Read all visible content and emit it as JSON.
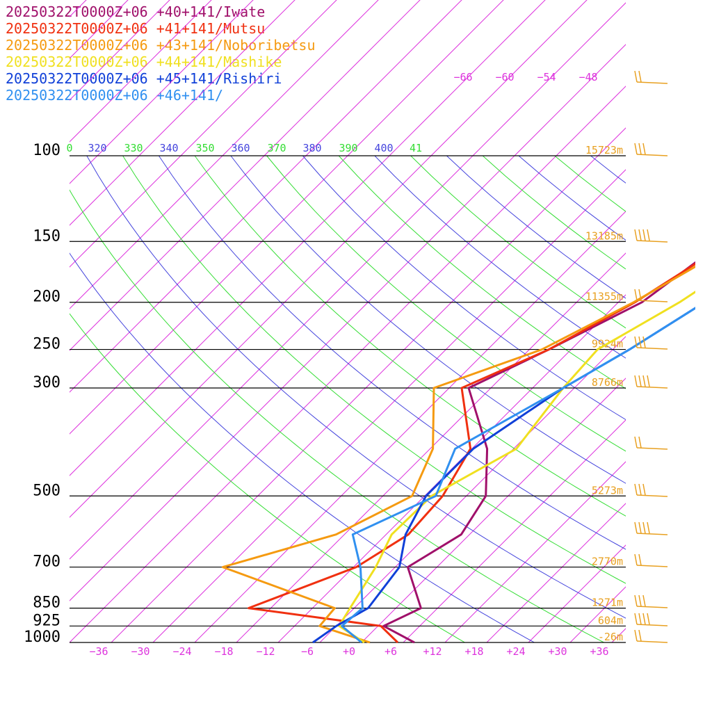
{
  "chart_data": {
    "type": "line",
    "subtype": "skew-T log-p sounding",
    "title_lines": [
      "20250322T0000Z+06 +40+141/Iwate",
      "20250322T0000Z+06 +41+141/Mutsu",
      "20250322T0000Z+06 +43+141/Noboribetsu",
      "20250322T0000Z+06 +44+141/Mashike",
      "20250322T0000Z+06 +45+141/Rishiri",
      "20250322T0000Z+06 +46+141/"
    ],
    "colors": {
      "series": [
        "#a0106a",
        "#f03010",
        "#f59a10",
        "#f0e020",
        "#1040d8",
        "#3090f0"
      ],
      "isotherm": "#dd33dd",
      "theta": "#4444dd",
      "theta_alt": "#33dd33",
      "pressure_line": "#000000",
      "height_label": "#e8a020",
      "wind_barb": "#e8a020",
      "temp_tick": "#dd33dd"
    },
    "pressure_levels": [
      100,
      150,
      200,
      250,
      300,
      500,
      700,
      850,
      925,
      1000
    ],
    "pressure_labels": [
      "100",
      "150",
      "200",
      "250",
      "300",
      "500",
      "700",
      "850",
      "925",
      "1000"
    ],
    "height_labels": [
      "15723m",
      "13185m",
      "11355m",
      "9924m",
      "8766m",
      "5273m",
      "2770m",
      "1271m",
      "604m",
      "-26m"
    ],
    "temperature_ticks": [
      "−36",
      "−30",
      "−24",
      "−18",
      "−12",
      "−6",
      "+0",
      "+6",
      "+12",
      "+18",
      "+24",
      "+30",
      "+36"
    ],
    "upper_isotherm_labels": [
      "−66",
      "−60",
      "−54",
      "−48"
    ],
    "theta_labels": [
      "0",
      "320",
      "330",
      "340",
      "350",
      "360",
      "370",
      "380",
      "390",
      "400",
      "41"
    ],
    "xlim": [
      -40,
      40
    ],
    "ylim": [
      1000,
      100
    ],
    "series": [
      {
        "name": "20250322T0000Z+06 +40+141/Iwate",
        "points": [
          [
            1000,
            9.6
          ],
          [
            925,
            2.8
          ],
          [
            850,
            5.6
          ],
          [
            700,
            -2.2
          ],
          [
            600,
            0.8
          ],
          [
            500,
            -1.2
          ],
          [
            400,
            -7.8
          ],
          [
            300,
            -19.2
          ],
          [
            250,
            -13.2
          ],
          [
            200,
            -6.6
          ],
          [
            150,
            -3.6
          ],
          [
            125,
            3.2
          ],
          [
            100,
            8.8
          ]
        ]
      },
      {
        "name": "20250322T0000Z+06 +41+141/Mutsu",
        "points": [
          [
            1000,
            7.2
          ],
          [
            925,
            2.4
          ],
          [
            850,
            -19.2
          ],
          [
            700,
            -9.6
          ],
          [
            600,
            -6.8
          ],
          [
            500,
            -7.4
          ],
          [
            400,
            -10.2
          ],
          [
            300,
            -20.2
          ],
          [
            250,
            -13.2
          ],
          [
            200,
            -7.6
          ],
          [
            150,
            -2.6
          ],
          [
            125,
            1.2
          ],
          [
            100,
            8.8
          ]
        ]
      },
      {
        "name": "20250322T0000Z+06 +43+141/Noboribetsu",
        "points": [
          [
            1000,
            3.2
          ],
          [
            925,
            -6.4
          ],
          [
            850,
            -6.8
          ],
          [
            700,
            -28.8
          ],
          [
            600,
            -17.2
          ],
          [
            500,
            -11.8
          ],
          [
            400,
            -15.6
          ],
          [
            300,
            -24.2
          ],
          [
            250,
            -14.2
          ],
          [
            200,
            -7.8
          ],
          [
            150,
            -1.4
          ],
          [
            125,
            0.2
          ],
          [
            100,
            10.8
          ]
        ]
      },
      {
        "name": "20250322T0000Z+06 +44+141/Mashike",
        "points": [
          [
            1000,
            2.4
          ],
          [
            925,
            -3.6
          ],
          [
            850,
            -4.6
          ],
          [
            700,
            -6.8
          ],
          [
            600,
            -9.2
          ],
          [
            500,
            -9.0
          ],
          [
            400,
            -3.6
          ],
          [
            300,
            -5.6
          ],
          [
            250,
            -6.2
          ],
          [
            200,
            -1.2
          ],
          [
            150,
            3.4
          ],
          [
            125,
            2.2
          ],
          [
            100,
            10.8
          ]
        ]
      },
      {
        "name": "20250322T0000Z+06 +45+141/Rishiri",
        "points": [
          [
            1000,
            -5.0
          ],
          [
            925,
            -4.0
          ],
          [
            850,
            -2.0
          ],
          [
            700,
            -3.4
          ],
          [
            600,
            -7.2
          ],
          [
            500,
            -9.8
          ],
          [
            400,
            -9.8
          ],
          [
            300,
            -5.6
          ],
          [
            250,
            -1.6
          ],
          [
            200,
            2.4
          ],
          [
            150,
            6.2
          ],
          [
            125,
            4.4
          ],
          [
            100,
            11.2
          ]
        ]
      },
      {
        "name": "20250322T0000Z+06 +46+141/",
        "points": [
          [
            1000,
            2.0
          ],
          [
            925,
            -3.2
          ],
          [
            850,
            -2.8
          ],
          [
            700,
            -9.0
          ],
          [
            600,
            -14.8
          ],
          [
            500,
            -8.4
          ],
          [
            400,
            -12.4
          ],
          [
            300,
            -5.6
          ],
          [
            250,
            -1.6
          ],
          [
            200,
            2.4
          ],
          [
            150,
            6.2
          ],
          [
            125,
            4.4
          ],
          [
            100,
            11.2
          ]
        ]
      }
    ],
    "legend_position": "top-left",
    "grid": true
  }
}
